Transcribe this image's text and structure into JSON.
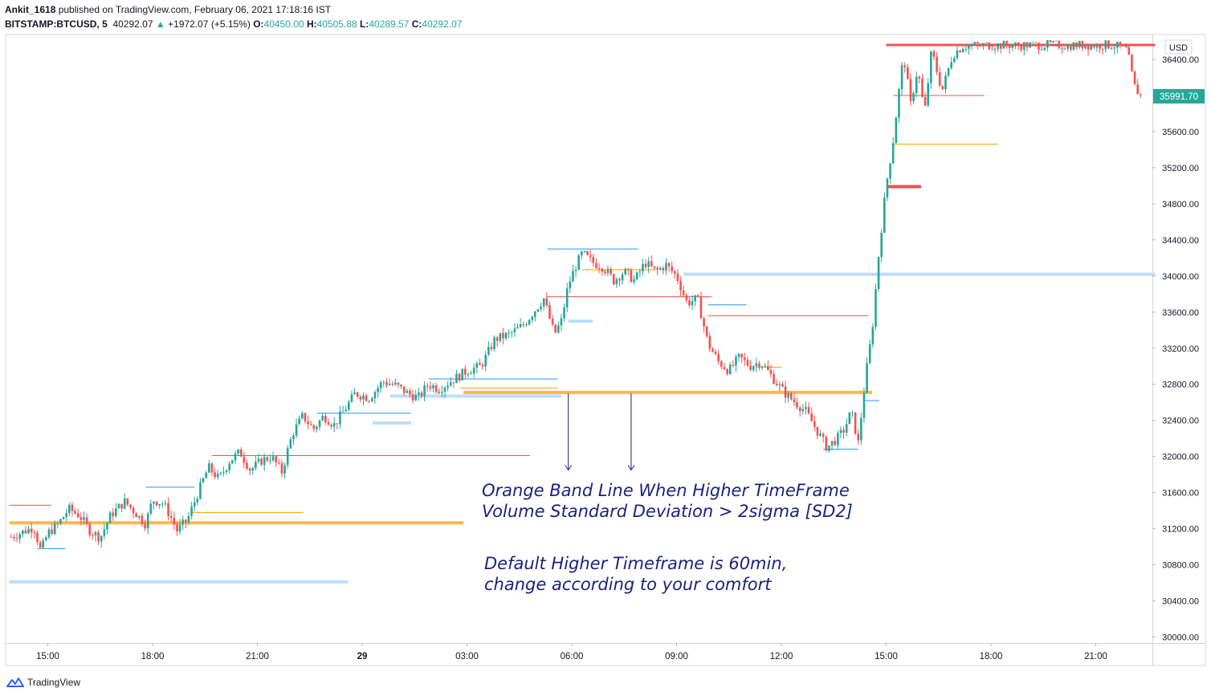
{
  "header": {
    "user": "Ankit_1618",
    "published_text": " published on TradingView.com, February 06, 2021 17:18:16 IST",
    "symbol": "BITSTAMP:BTCUSD, 5",
    "last": "40292.07",
    "change_arrow": "▲",
    "change": "+1972.07 (+5.15%)",
    "o_label": "O:",
    "o_value": "40450.00",
    "h_label": "H:",
    "h_value": "40505.88",
    "l_label": "L:",
    "l_value": "40289.57",
    "c_label": "C:",
    "c_value": "40292.07"
  },
  "annotations": {
    "note1_line1": "Orange Band Line When Higher TimeFrame",
    "note1_line2": "Volume Standard Deviation > 2sigma [SD2]",
    "note2_line1": "Default Higher Timeframe is 60min,",
    "note2_line2": "change according to your comfort"
  },
  "footer": {
    "brand": "TradingView",
    "logo_icon": "tradingview-logo-icon"
  },
  "chart_data": {
    "type": "candlestick",
    "currency": "USD",
    "current_price": "35991.70",
    "ylim": [
      29950,
      36700
    ],
    "y_ticks": [
      30000,
      30400,
      30800,
      31200,
      31600,
      32000,
      32400,
      32800,
      33200,
      33600,
      34000,
      34400,
      34800,
      35200,
      35600,
      36000,
      36400
    ],
    "y_tick_labels": [
      "30000.00",
      "30400.00",
      "30800.00",
      "31200.00",
      "31600.00",
      "32000.00",
      "32400.00",
      "32800.00",
      "33200.00",
      "33600.00",
      "34000.00",
      "34400.00",
      "34800.00",
      "35200.00",
      "35600.00",
      "36000.00",
      "36400.00"
    ],
    "x_ticks": [
      {
        "t": 15,
        "label": "15:00",
        "bold": false
      },
      {
        "t": 18,
        "label": "18:00",
        "bold": false
      },
      {
        "t": 21,
        "label": "21:00",
        "bold": false
      },
      {
        "t": 24,
        "label": "29",
        "bold": true
      },
      {
        "t": 27,
        "label": "03:00",
        "bold": false
      },
      {
        "t": 30,
        "label": "06:00",
        "bold": false
      },
      {
        "t": 33,
        "label": "09:00",
        "bold": false
      },
      {
        "t": 36,
        "label": "12:00",
        "bold": false
      },
      {
        "t": 39,
        "label": "15:00",
        "bold": false
      },
      {
        "t": 42,
        "label": "18:00",
        "bold": false
      },
      {
        "t": 45,
        "label": "21:00",
        "bold": false
      }
    ],
    "xlim": [
      13.9,
      46.7
    ],
    "colors": {
      "up": "#26a69a",
      "down": "#ef5350",
      "band_orange": "#ffb74d",
      "band_blue": "#bbdefb",
      "line_red": "#ef5350",
      "line_orange": "#ff9800",
      "line_blue": "#2196f3",
      "arrow": "#1a237e",
      "grid": "#e0e3eb",
      "price_label": "#26a69a"
    },
    "price_path": [
      [
        13.9,
        31100
      ],
      [
        14.2,
        31150
      ],
      [
        14.6,
        31220
      ],
      [
        14.8,
        30950
      ],
      [
        15.0,
        31150
      ],
      [
        15.3,
        31250
      ],
      [
        15.6,
        31420
      ],
      [
        15.9,
        31350
      ],
      [
        16.2,
        31180
      ],
      [
        16.5,
        31100
      ],
      [
        16.8,
        31350
      ],
      [
        17.2,
        31500
      ],
      [
        17.5,
        31380
      ],
      [
        17.8,
        31250
      ],
      [
        18.0,
        31520
      ],
      [
        18.3,
        31480
      ],
      [
        18.5,
        31350
      ],
      [
        18.7,
        31180
      ],
      [
        19.0,
        31300
      ],
      [
        19.3,
        31600
      ],
      [
        19.6,
        31880
      ],
      [
        19.9,
        31750
      ],
      [
        20.2,
        31950
      ],
      [
        20.5,
        32050
      ],
      [
        20.8,
        31850
      ],
      [
        21.1,
        31950
      ],
      [
        21.4,
        32000
      ],
      [
        21.7,
        31830
      ],
      [
        22.0,
        32250
      ],
      [
        22.3,
        32450
      ],
      [
        22.6,
        32300
      ],
      [
        22.9,
        32450
      ],
      [
        23.2,
        32350
      ],
      [
        23.5,
        32520
      ],
      [
        23.8,
        32700
      ],
      [
        24.2,
        32650
      ],
      [
        24.6,
        32830
      ],
      [
        25.0,
        32780
      ],
      [
        25.3,
        32700
      ],
      [
        25.6,
        32650
      ],
      [
        25.9,
        32800
      ],
      [
        26.2,
        32750
      ],
      [
        26.6,
        32850
      ],
      [
        27.0,
        32950
      ],
      [
        27.4,
        33000
      ],
      [
        27.8,
        33300
      ],
      [
        28.2,
        33350
      ],
      [
        28.6,
        33450
      ],
      [
        28.9,
        33600
      ],
      [
        29.2,
        33750
      ],
      [
        29.5,
        33350
      ],
      [
        29.7,
        33500
      ],
      [
        29.9,
        33900
      ],
      [
        30.1,
        34100
      ],
      [
        30.3,
        34250
      ],
      [
        30.6,
        34150
      ],
      [
        30.9,
        34100
      ],
      [
        31.2,
        33950
      ],
      [
        31.5,
        34050
      ],
      [
        31.8,
        33950
      ],
      [
        32.1,
        34150
      ],
      [
        32.4,
        34050
      ],
      [
        32.7,
        34120
      ],
      [
        33.0,
        34000
      ],
      [
        33.3,
        33700
      ],
      [
        33.6,
        33750
      ],
      [
        33.9,
        33250
      ],
      [
        34.2,
        33050
      ],
      [
        34.5,
        32950
      ],
      [
        34.8,
        33100
      ],
      [
        35.1,
        33000
      ],
      [
        35.4,
        33050
      ],
      [
        35.8,
        32850
      ],
      [
        36.1,
        32700
      ],
      [
        36.4,
        32600
      ],
      [
        36.7,
        32500
      ],
      [
        37.0,
        32300
      ],
      [
        37.3,
        32100
      ],
      [
        37.6,
        32200
      ],
      [
        37.8,
        32300
      ],
      [
        38.0,
        32500
      ],
      [
        38.2,
        32150
      ],
      [
        38.4,
        32850
      ],
      [
        38.6,
        33400
      ],
      [
        38.8,
        34300
      ],
      [
        39.0,
        35000
      ],
      [
        39.2,
        35500
      ],
      [
        39.35,
        36000
      ],
      [
        39.5,
        36450
      ],
      [
        39.7,
        35900
      ],
      [
        39.9,
        36300
      ],
      [
        40.1,
        35800
      ],
      [
        40.3,
        36500
      ],
      [
        40.6,
        36050
      ],
      [
        40.9,
        36450
      ],
      [
        41.2,
        36550
      ],
      [
        41.6,
        36560
      ],
      [
        42.5,
        36560
      ],
      [
        43.5,
        36560
      ],
      [
        44.5,
        36560
      ],
      [
        45.5,
        36560
      ],
      [
        45.9,
        36500
      ],
      [
        46.1,
        36100
      ],
      [
        46.3,
        35990
      ]
    ],
    "bands": [
      {
        "color": "band_orange",
        "t1": 13.9,
        "t2": 26.9,
        "y": 31265,
        "w": 4
      },
      {
        "color": "band_orange",
        "t1": 26.9,
        "t2": 38.6,
        "y": 32710,
        "w": 4
      },
      {
        "color": "band_blue",
        "t1": 13.9,
        "t2": 23.6,
        "y": 30610,
        "w": 4
      },
      {
        "color": "band_blue",
        "t1": 33.2,
        "t2": 46.7,
        "y": 34020,
        "w": 4
      },
      {
        "color": "band_blue",
        "t1": 24.8,
        "t2": 29.7,
        "y": 32670,
        "w": 4
      },
      {
        "color": "band_blue",
        "t1": 29.9,
        "t2": 30.6,
        "y": 33500,
        "w": 4
      },
      {
        "color": "band_blue",
        "t1": 24.3,
        "t2": 25.4,
        "y": 32370,
        "w": 4
      },
      {
        "color": "line_red",
        "t1": 39.0,
        "t2": 40.0,
        "y": 34990,
        "w": 4
      },
      {
        "color": "line_red",
        "t1": 39.0,
        "t2": 46.7,
        "y": 36560,
        "w": 3
      }
    ],
    "levels": [
      {
        "color": "line_red",
        "t1": 13.9,
        "t2": 15.1,
        "y": 31460
      },
      {
        "color": "line_red",
        "t1": 19.7,
        "t2": 28.8,
        "y": 32010
      },
      {
        "color": "line_red",
        "t1": 29.3,
        "t2": 34.0,
        "y": 33770
      },
      {
        "color": "line_red",
        "t1": 33.9,
        "t2": 38.5,
        "y": 33560
      },
      {
        "color": "line_red",
        "t1": 39.2,
        "t2": 41.8,
        "y": 36000
      },
      {
        "color": "line_orange",
        "t1": 19.1,
        "t2": 22.3,
        "y": 31380
      },
      {
        "color": "line_orange",
        "t1": 26.8,
        "t2": 29.6,
        "y": 32760
      },
      {
        "color": "line_orange",
        "t1": 30.3,
        "t2": 32.4,
        "y": 34070
      },
      {
        "color": "line_orange",
        "t1": 39.2,
        "t2": 42.2,
        "y": 35460
      },
      {
        "color": "line_orange",
        "t1": 35.3,
        "t2": 36.0,
        "y": 32990
      },
      {
        "color": "line_blue",
        "t1": 14.7,
        "t2": 15.5,
        "y": 30980
      },
      {
        "color": "line_blue",
        "t1": 17.8,
        "t2": 19.2,
        "y": 31660
      },
      {
        "color": "line_blue",
        "t1": 22.7,
        "t2": 25.4,
        "y": 32480
      },
      {
        "color": "line_blue",
        "t1": 25.9,
        "t2": 29.6,
        "y": 32860
      },
      {
        "color": "line_blue",
        "t1": 29.3,
        "t2": 31.9,
        "y": 34300
      },
      {
        "color": "line_blue",
        "t1": 33.9,
        "t2": 35.0,
        "y": 33680
      },
      {
        "color": "line_blue",
        "t1": 37.2,
        "t2": 38.2,
        "y": 32080
      },
      {
        "color": "line_blue",
        "t1": 38.4,
        "t2": 38.8,
        "y": 32620
      }
    ],
    "arrows": [
      {
        "t": 29.9,
        "y1": 32700,
        "y2": 31850
      },
      {
        "t": 31.7,
        "y1": 32700,
        "y2": 31850
      }
    ]
  }
}
